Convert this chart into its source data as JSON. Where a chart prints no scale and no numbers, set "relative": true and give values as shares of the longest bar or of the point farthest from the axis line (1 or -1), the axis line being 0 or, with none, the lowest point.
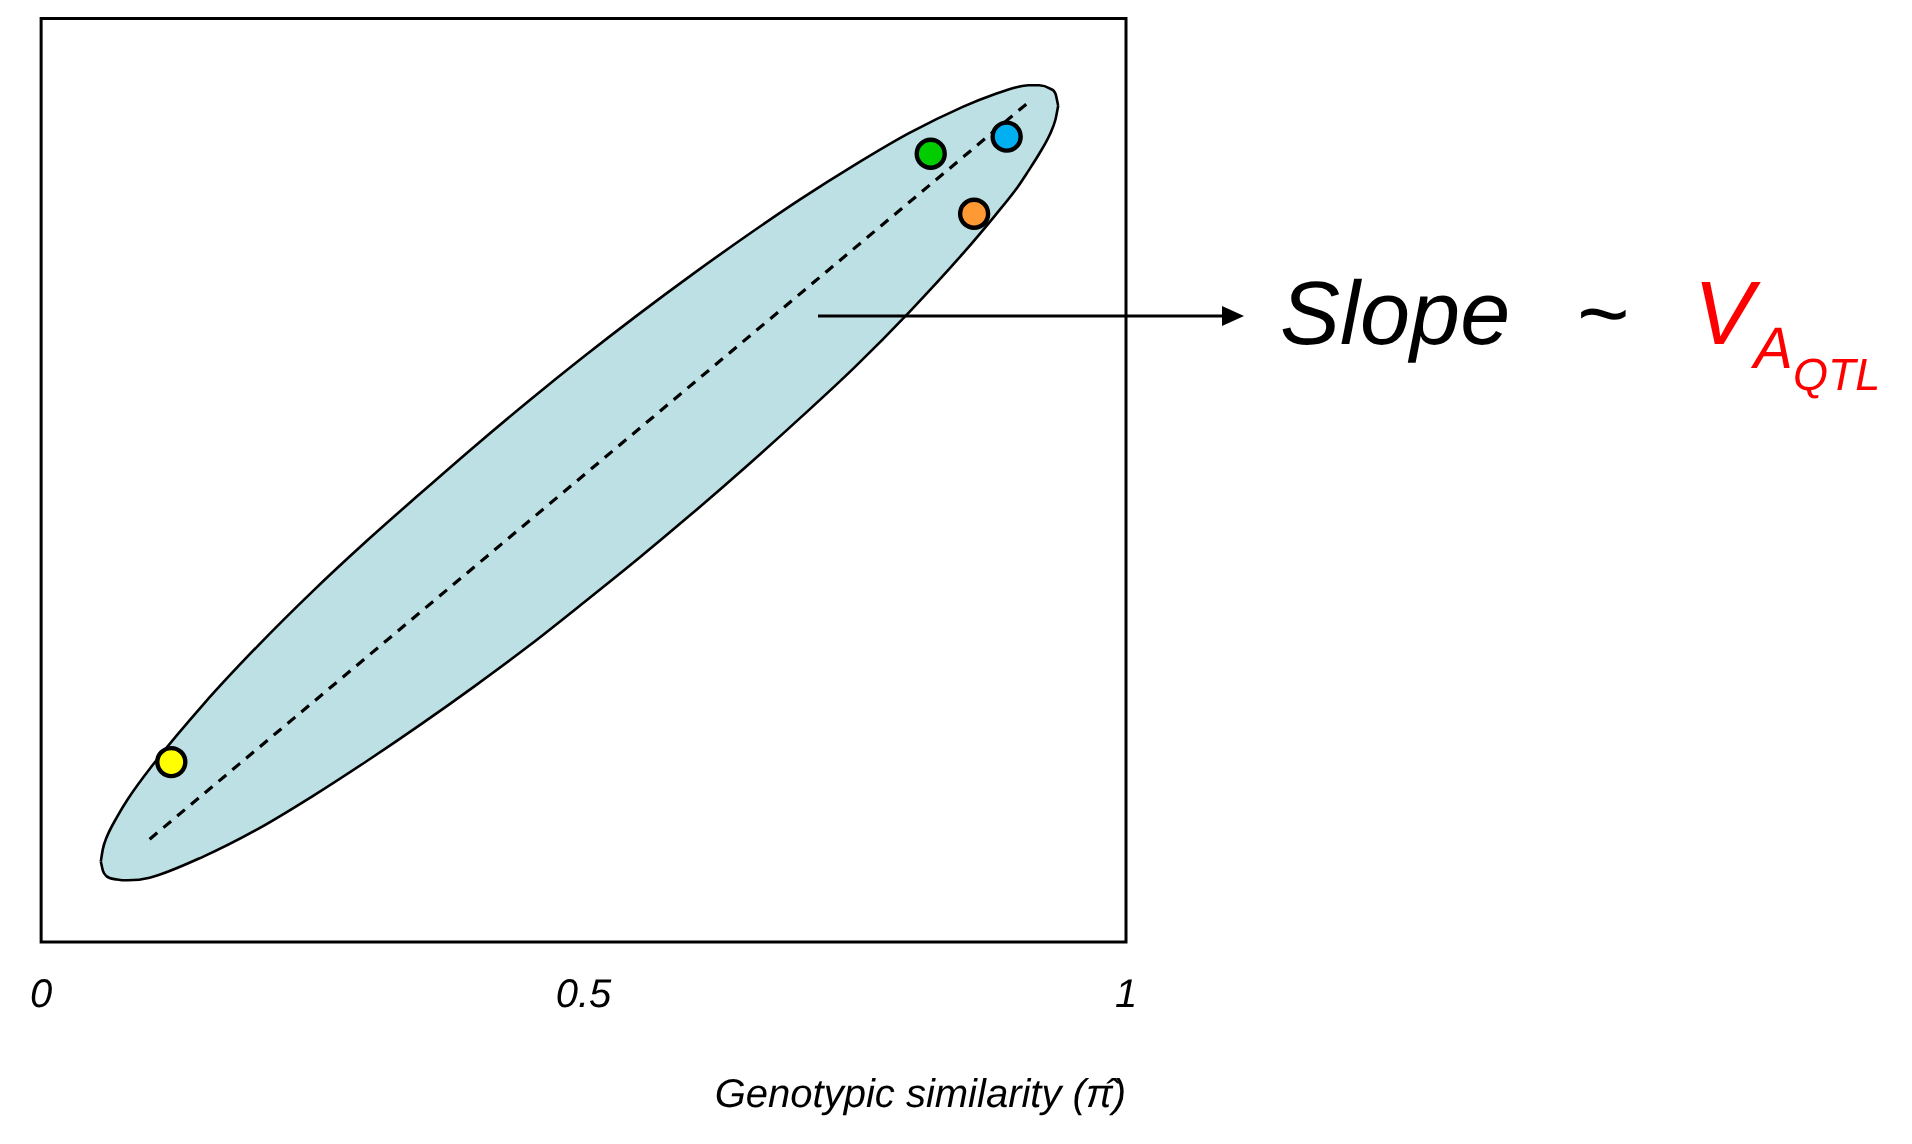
{
  "chart_data": {
    "type": "scatter",
    "xlabel": "Genotypic similarity (π̂)",
    "xlim": [
      0,
      1
    ],
    "xticks": [
      0,
      0.5,
      1
    ],
    "relative": true,
    "tick_labels": "x",
    "marker": "circle",
    "series": [
      {
        "x": [
          0.12,
          0.82,
          0.89,
          0.86
        ],
        "values": [
          0.21,
          0.92,
          0.94,
          0.85
        ],
        "colors": [
          "#ffff00",
          "#00cc00",
          "#00b0f0",
          "#ff9933"
        ]
      },
      {
        "type": "line",
        "x": [
          0.1,
          0.91
        ],
        "values": [
          0.12,
          0.98
        ],
        "color": "#000000",
        "marker": "none",
        "line_style": "dashed"
      },
      {
        "type": "line",
        "x": [
          0.055,
          0.057,
          0.06,
          0.07,
          0.08,
          0.1,
          0.15,
          0.2,
          0.25,
          0.3,
          0.35,
          0.4,
          0.45,
          0.5,
          0.55,
          0.6,
          0.65,
          0.7,
          0.75,
          0.8,
          0.85,
          0.88,
          0.9,
          0.91,
          0.92,
          0.93,
          0.935,
          0.9375
        ],
        "values": [
          0.094,
          0.109,
          0.121,
          0.146,
          0.167,
          0.202,
          0.278,
          0.346,
          0.409,
          0.468,
          0.524,
          0.579,
          0.632,
          0.683,
          0.732,
          0.779,
          0.824,
          0.867,
          0.907,
          0.944,
          0.975,
          0.99,
          0.998,
          1,
          1,
          0.996,
          0.99,
          0.976
        ],
        "lower": [
          0.094,
          0.083,
          0.077,
          0.073,
          0.072,
          0.075,
          0.1,
          0.132,
          0.17,
          0.211,
          0.254,
          0.299,
          0.346,
          0.396,
          0.447,
          0.5,
          0.555,
          0.612,
          0.671,
          0.735,
          0.804,
          0.849,
          0.881,
          0.9,
          0.92,
          0.943,
          0.96,
          0.976
        ],
        "upper": [
          0.094,
          0.109,
          0.121,
          0.146,
          0.167,
          0.202,
          0.278,
          0.346,
          0.409,
          0.468,
          0.524,
          0.579,
          0.632,
          0.683,
          0.732,
          0.779,
          0.824,
          0.867,
          0.907,
          0.944,
          0.975,
          0.99,
          0.998,
          1,
          1,
          0.996,
          0.99,
          0.976
        ],
        "color": "#000000",
        "marker": "none"
      },
      {
        "type": "line",
        "x": [
          0.055,
          0.057,
          0.06,
          0.07,
          0.08,
          0.1,
          0.15,
          0.2,
          0.25,
          0.3,
          0.35,
          0.4,
          0.45,
          0.5,
          0.55,
          0.6,
          0.65,
          0.7,
          0.75,
          0.8,
          0.85,
          0.88,
          0.9,
          0.91,
          0.92,
          0.93,
          0.935,
          0.9375
        ],
        "values": [
          0.094,
          0.083,
          0.077,
          0.073,
          0.072,
          0.075,
          0.1,
          0.132,
          0.17,
          0.211,
          0.254,
          0.299,
          0.346,
          0.396,
          0.447,
          0.5,
          0.555,
          0.612,
          0.671,
          0.735,
          0.804,
          0.849,
          0.881,
          0.9,
          0.92,
          0.943,
          0.96,
          0.976
        ],
        "color": "#000000",
        "marker": "none"
      }
    ],
    "annotations": [
      "Slope ~ V$_{AQTL}$"
    ]
  }
}
